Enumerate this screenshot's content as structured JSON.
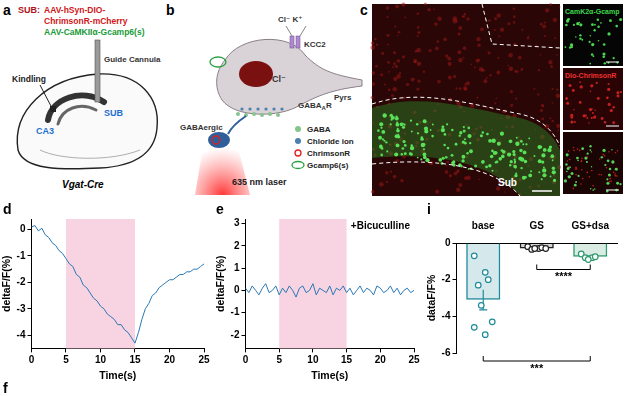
{
  "figure": {
    "a": {
      "label": "a",
      "title": "SUB:",
      "constructs": [
        {
          "lines": [
            "AAV-hSyn-DIO-",
            "ChrimsonR-mCherry"
          ],
          "color": "#d01620"
        },
        {
          "lines": [
            "AAV-CaMKIIα-Gcamp6(s)"
          ],
          "color": "#1a9a3a"
        }
      ],
      "kindling": "Kindling",
      "cannula": "Guide Cannula",
      "ca3": "CA3",
      "sub": "SUB",
      "mouse": "Vgat-Cre"
    },
    "b": {
      "label": "b",
      "ions": "Cl⁻ K⁺",
      "transporter": "KCC2",
      "chloride": "Cl⁻",
      "receptor": {
        "text": "GABA",
        "sub": "A",
        "after": "R"
      },
      "cell": "Pyrs",
      "interneuron": "GABAergic",
      "laser": "635 nm laser",
      "legend": [
        {
          "name": "GABA",
          "color": "#86c48e",
          "marker": "dot"
        },
        {
          "name": "Chloride ion",
          "color": "#4a7fb0",
          "marker": "dot"
        },
        {
          "name": "ChrimsonR",
          "color": "#e02020",
          "marker": "ring"
        },
        {
          "name": "Gcamp6(s)",
          "color": "#2aa040",
          "marker": "ellipse"
        }
      ]
    },
    "c": {
      "label": "c",
      "region": "Sub",
      "insets": [
        {
          "text": "CamK2α-Gcamp",
          "color": "#3fd84f"
        },
        {
          "text": "Dio-ChrimsonR",
          "color": "#ee3030"
        }
      ]
    },
    "f": {
      "label": "f"
    }
  },
  "chart_data": [
    {
      "panel": "d",
      "type": "line",
      "color": "#2b78b5",
      "grid": false,
      "x": [
        0,
        0.5,
        1,
        1.5,
        2,
        2.5,
        3,
        3.5,
        4,
        4.5,
        5,
        5.5,
        6,
        6.5,
        7,
        7.5,
        8,
        8.5,
        9,
        9.5,
        10,
        10.5,
        11,
        11.5,
        12,
        12.5,
        13,
        13.5,
        14,
        14.5,
        15,
        15.5,
        16,
        16.5,
        17,
        17.5,
        18,
        18.5,
        19,
        19.5,
        20,
        20.5,
        21,
        21.5,
        22,
        22.5,
        23,
        23.5,
        24,
        24.5,
        25
      ],
      "values": [
        0.1,
        0.15,
        -0.05,
        0.05,
        -0.2,
        -0.3,
        -0.5,
        -0.6,
        -0.8,
        -0.9,
        -1.1,
        -1.3,
        -1.4,
        -1.7,
        -1.8,
        -2.1,
        -2.2,
        -2.4,
        -2.6,
        -2.7,
        -2.9,
        -3.0,
        -3.2,
        -3.3,
        -3.4,
        -3.6,
        -3.6,
        -3.8,
        -3.9,
        -4.1,
        -4.3,
        -3.9,
        -3.4,
        -3.0,
        -2.8,
        -2.5,
        -2.4,
        -2.2,
        -2.1,
        -2.0,
        -1.9,
        -1.9,
        -1.8,
        -1.7,
        -1.7,
        -1.6,
        -1.6,
        -1.5,
        -1.5,
        -1.4,
        -1.3
      ],
      "stimulus": [
        5,
        15
      ],
      "x_label": "Time(s)",
      "y_label": "deltaF/F(%)",
      "xlim": [
        0,
        25
      ],
      "xticks": [
        0,
        5,
        10,
        15,
        20,
        25
      ],
      "ylim": [
        -4.5,
        0.4
      ],
      "yticks": [
        -4,
        -3,
        -2,
        -1,
        0
      ]
    },
    {
      "panel": "e",
      "type": "line",
      "color": "#2b78b5",
      "grid": false,
      "x": [
        0,
        0.5,
        1,
        1.5,
        2,
        2.5,
        3,
        3.5,
        4,
        4.5,
        5,
        5.5,
        6,
        6.5,
        7,
        7.5,
        8,
        8.5,
        9,
        9.5,
        10,
        10.5,
        11,
        11.5,
        12,
        12.5,
        13,
        13.5,
        14,
        14.5,
        15,
        15.5,
        16,
        16.5,
        17,
        17.5,
        18,
        18.5,
        19,
        19.5,
        20,
        20.5,
        21,
        21.5,
        22,
        22.5,
        23,
        23.5,
        24,
        24.5,
        25
      ],
      "values": [
        0.1,
        -0.1,
        0.2,
        0.0,
        -0.2,
        0.1,
        0.3,
        -0.1,
        0.0,
        0.2,
        -0.2,
        0.1,
        -0.1,
        0.2,
        0.0,
        -0.3,
        0.1,
        0.2,
        -0.1,
        0.0,
        0.3,
        -0.2,
        0.1,
        0.0,
        -0.1,
        0.2,
        -0.2,
        0.1,
        0.0,
        0.2,
        -0.1,
        0.1,
        -0.2,
        0.0,
        0.2,
        -0.1,
        0.1,
        0.0,
        -0.2,
        0.2,
        0.1,
        -0.1,
        0.0,
        0.2,
        -0.1,
        0.1,
        -0.2,
        0.0,
        0.1,
        -0.1,
        0.0
      ],
      "stimulus": [
        5,
        15
      ],
      "annotation": "+Bicuculline",
      "x_label": "Time(s)",
      "y_label": "deltaF/F(%)",
      "xlim": [
        0,
        25
      ],
      "xticks": [
        0,
        5,
        10,
        15,
        20,
        25
      ],
      "ylim": [
        -2.6,
        3.2
      ],
      "yticks": [
        -2,
        -1,
        0,
        1,
        2,
        3
      ]
    },
    {
      "panel": "i",
      "type": "bar",
      "grid": false,
      "categories": [
        "base",
        "GS",
        "GS+dsa"
      ],
      "values": [
        -3.1,
        -0.3,
        -0.75
      ],
      "errors": [
        0.55,
        0.05,
        0.06
      ],
      "colors": [
        "#1f8a99",
        "#222222",
        "#2e9a6e"
      ],
      "points": [
        [
          -0.7,
          -1.6,
          -2.0,
          -2.3,
          -3.4,
          -4.3,
          -4.6,
          -5.0
        ],
        [
          -0.2,
          -0.3,
          -0.25,
          -0.35,
          -0.3,
          -0.3
        ],
        [
          -0.6,
          -0.8,
          -0.75,
          -0.8,
          -0.9
        ]
      ],
      "significance": [
        {
          "pair": [
            "GS",
            "GS+dsa"
          ],
          "label": "****"
        },
        {
          "pair": [
            "base",
            "GS+dsa"
          ],
          "label": "***"
        }
      ],
      "y_label": "dataF/F%",
      "ylim": [
        -6,
        0
      ],
      "yticks": [
        -6,
        -4,
        -2,
        0
      ]
    }
  ]
}
